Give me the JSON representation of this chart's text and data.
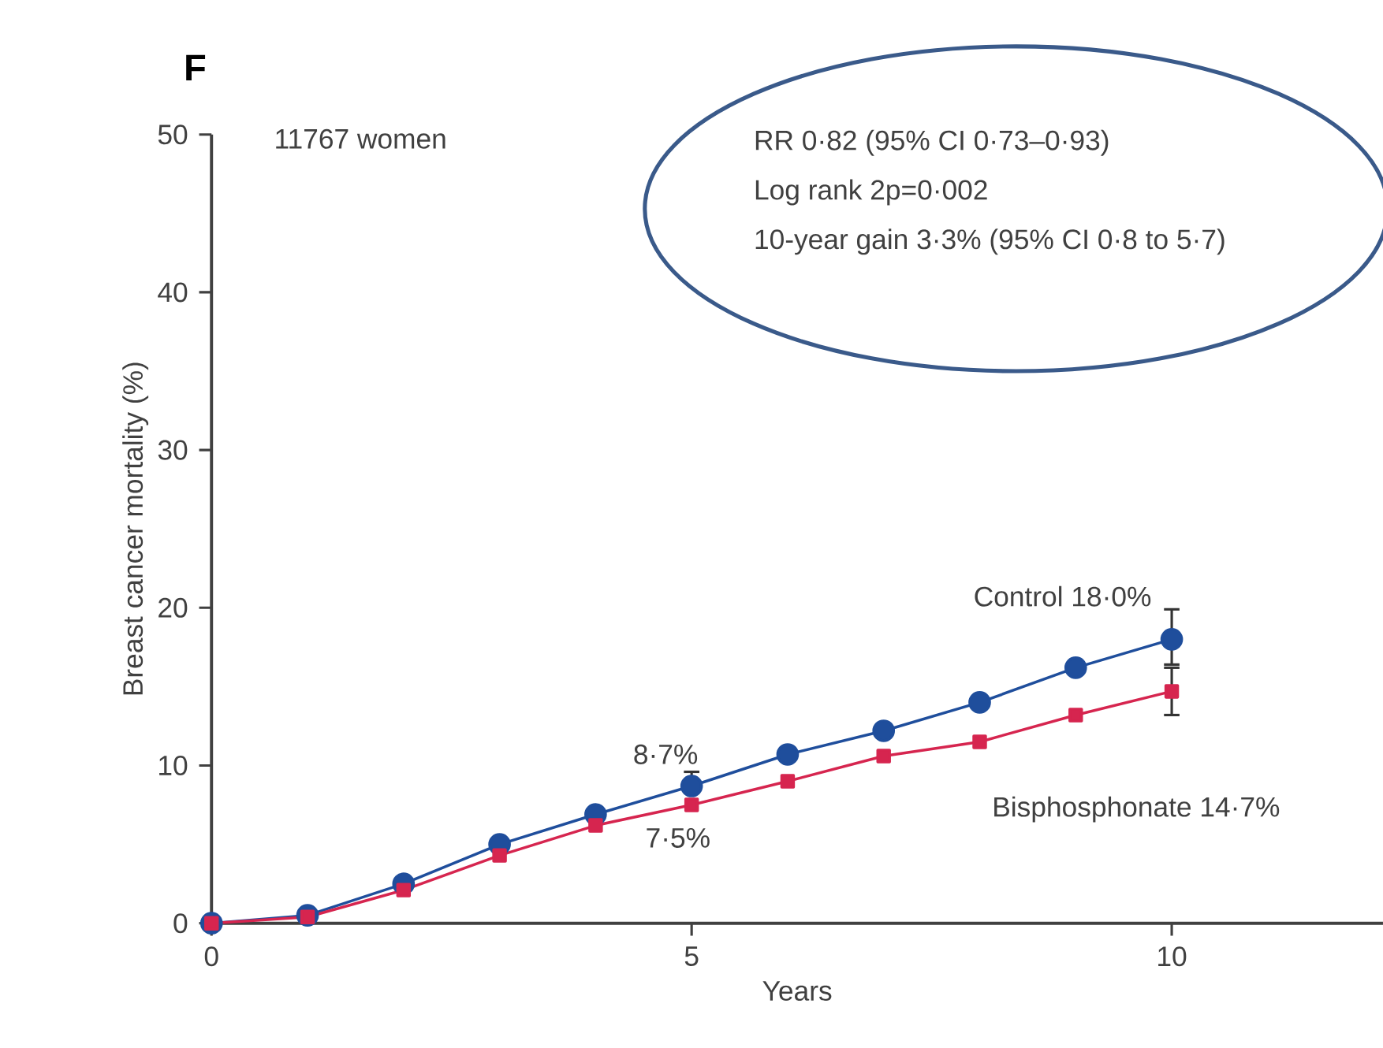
{
  "chart_data": {
    "type": "line",
    "title": "F",
    "xlabel": "Years",
    "ylabel": "Breast cancer mortality (%)",
    "x": [
      0,
      1,
      2,
      3,
      4,
      5,
      6,
      7,
      8,
      9,
      10
    ],
    "series": [
      {
        "color": "#1f4e9c",
        "marker": "circle",
        "values": [
          0,
          0.5,
          2.5,
          5.0,
          6.9,
          8.7,
          10.7,
          12.2,
          14.0,
          16.2,
          18.0
        ],
        "errors": [
          null,
          null,
          null,
          null,
          null,
          [
            8.7,
            9.6
          ],
          null,
          null,
          null,
          null,
          [
            16.4,
            19.9
          ]
        ]
      },
      {
        "color": "#d6254f",
        "marker": "square",
        "values": [
          0,
          0.4,
          2.1,
          4.3,
          6.2,
          7.5,
          9.0,
          10.6,
          11.5,
          13.2,
          14.7
        ],
        "errors": [
          null,
          null,
          null,
          null,
          null,
          null,
          null,
          null,
          null,
          null,
          [
            13.2,
            16.2
          ]
        ]
      }
    ],
    "xlim": [
      0,
      12.2
    ],
    "ylim": [
      0,
      50
    ],
    "xticks": [
      0,
      5,
      10
    ],
    "yticks": [
      0,
      10,
      20,
      30,
      40,
      50
    ],
    "line_style": "solid",
    "annotations": [
      "11767 women",
      "RR 0·82 (95% CI 0·73–0·93)",
      "Log rank 2p=0·002",
      "10-year gain 3·3% (95% CI 0·8 to 5·7)",
      "Control 18·0%",
      "Bisphosphonate 14·7%",
      "8·7%",
      "7·5%"
    ]
  }
}
